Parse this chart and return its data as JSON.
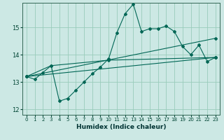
{
  "xlabel": "Humidex (Indice chaleur)",
  "ylabel": "",
  "bg_color": "#cce8e4",
  "grid_color": "#99ccbb",
  "line_color": "#006655",
  "xlim": [
    -0.5,
    23.5
  ],
  "ylim": [
    11.8,
    15.9
  ],
  "yticks": [
    12,
    13,
    14,
    15
  ],
  "xticks": [
    0,
    1,
    2,
    3,
    4,
    5,
    6,
    7,
    8,
    9,
    10,
    11,
    12,
    13,
    14,
    15,
    16,
    17,
    18,
    19,
    20,
    21,
    22,
    23
  ],
  "series": [
    {
      "x": [
        0,
        1,
        2,
        3,
        4,
        5,
        6,
        7,
        8,
        9,
        10,
        11,
        12,
        13,
        14,
        15,
        16,
        17,
        18,
        19,
        20,
        21,
        22,
        23
      ],
      "y": [
        13.2,
        13.1,
        13.35,
        13.6,
        12.3,
        12.4,
        12.7,
        13.0,
        13.3,
        13.55,
        13.85,
        14.8,
        15.5,
        15.85,
        14.85,
        14.95,
        14.95,
        15.05,
        14.85,
        14.3,
        14.0,
        14.35,
        13.75,
        13.9
      ]
    },
    {
      "x": [
        0,
        3,
        10,
        23
      ],
      "y": [
        13.2,
        13.6,
        13.8,
        13.9
      ]
    },
    {
      "x": [
        0,
        23
      ],
      "y": [
        13.2,
        14.6
      ]
    },
    {
      "x": [
        0,
        23
      ],
      "y": [
        13.2,
        13.9
      ]
    }
  ]
}
